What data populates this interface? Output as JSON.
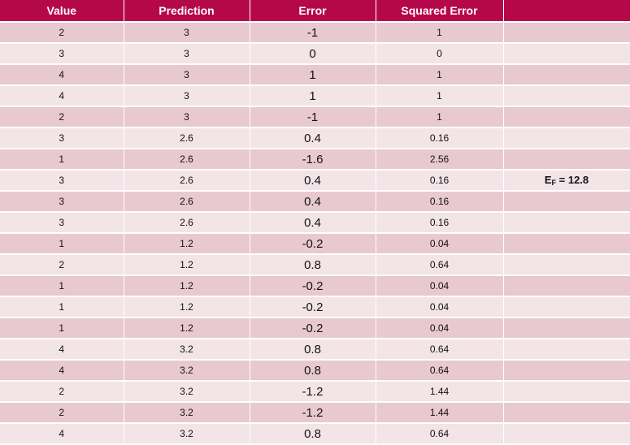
{
  "table": {
    "headers": [
      "Value",
      "Prediction",
      "Error",
      "Squared Error",
      ""
    ],
    "rows": [
      {
        "value": "2",
        "prediction": "3",
        "error": "-1",
        "squared_error": "1"
      },
      {
        "value": "3",
        "prediction": "3",
        "error": "0",
        "squared_error": "0"
      },
      {
        "value": "4",
        "prediction": "3",
        "error": "1",
        "squared_error": "1"
      },
      {
        "value": "4",
        "prediction": "3",
        "error": "1",
        "squared_error": "1"
      },
      {
        "value": "2",
        "prediction": "3",
        "error": "-1",
        "squared_error": "1"
      },
      {
        "value": "3",
        "prediction": "2.6",
        "error": "0.4",
        "squared_error": "0.16"
      },
      {
        "value": "1",
        "prediction": "2.6",
        "error": "-1.6",
        "squared_error": "2.56"
      },
      {
        "value": "3",
        "prediction": "2.6",
        "error": "0.4",
        "squared_error": "0.16"
      },
      {
        "value": "3",
        "prediction": "2.6",
        "error": "0.4",
        "squared_error": "0.16"
      },
      {
        "value": "3",
        "prediction": "2.6",
        "error": "0.4",
        "squared_error": "0.16"
      },
      {
        "value": "1",
        "prediction": "1.2",
        "error": "-0.2",
        "squared_error": "0.04"
      },
      {
        "value": "2",
        "prediction": "1.2",
        "error": "0.8",
        "squared_error": "0.64"
      },
      {
        "value": "1",
        "prediction": "1.2",
        "error": "-0.2",
        "squared_error": "0.04"
      },
      {
        "value": "1",
        "prediction": "1.2",
        "error": "-0.2",
        "squared_error": "0.04"
      },
      {
        "value": "1",
        "prediction": "1.2",
        "error": "-0.2",
        "squared_error": "0.04"
      },
      {
        "value": "4",
        "prediction": "3.2",
        "error": "0.8",
        "squared_error": "0.64"
      },
      {
        "value": "4",
        "prediction": "3.2",
        "error": "0.8",
        "squared_error": "0.64"
      },
      {
        "value": "2",
        "prediction": "3.2",
        "error": "-1.2",
        "squared_error": "1.44"
      },
      {
        "value": "2",
        "prediction": "3.2",
        "error": "-1.2",
        "squared_error": "1.44"
      },
      {
        "value": "4",
        "prediction": "3.2",
        "error": "0.8",
        "squared_error": "0.64"
      }
    ],
    "annotation": {
      "symbol": "E",
      "subscript": "F",
      "value": "= 12.8"
    }
  },
  "colors": {
    "header_bg": "#b5084a",
    "row_dark": "#e8c9d0",
    "row_light": "#f3e4e7"
  }
}
